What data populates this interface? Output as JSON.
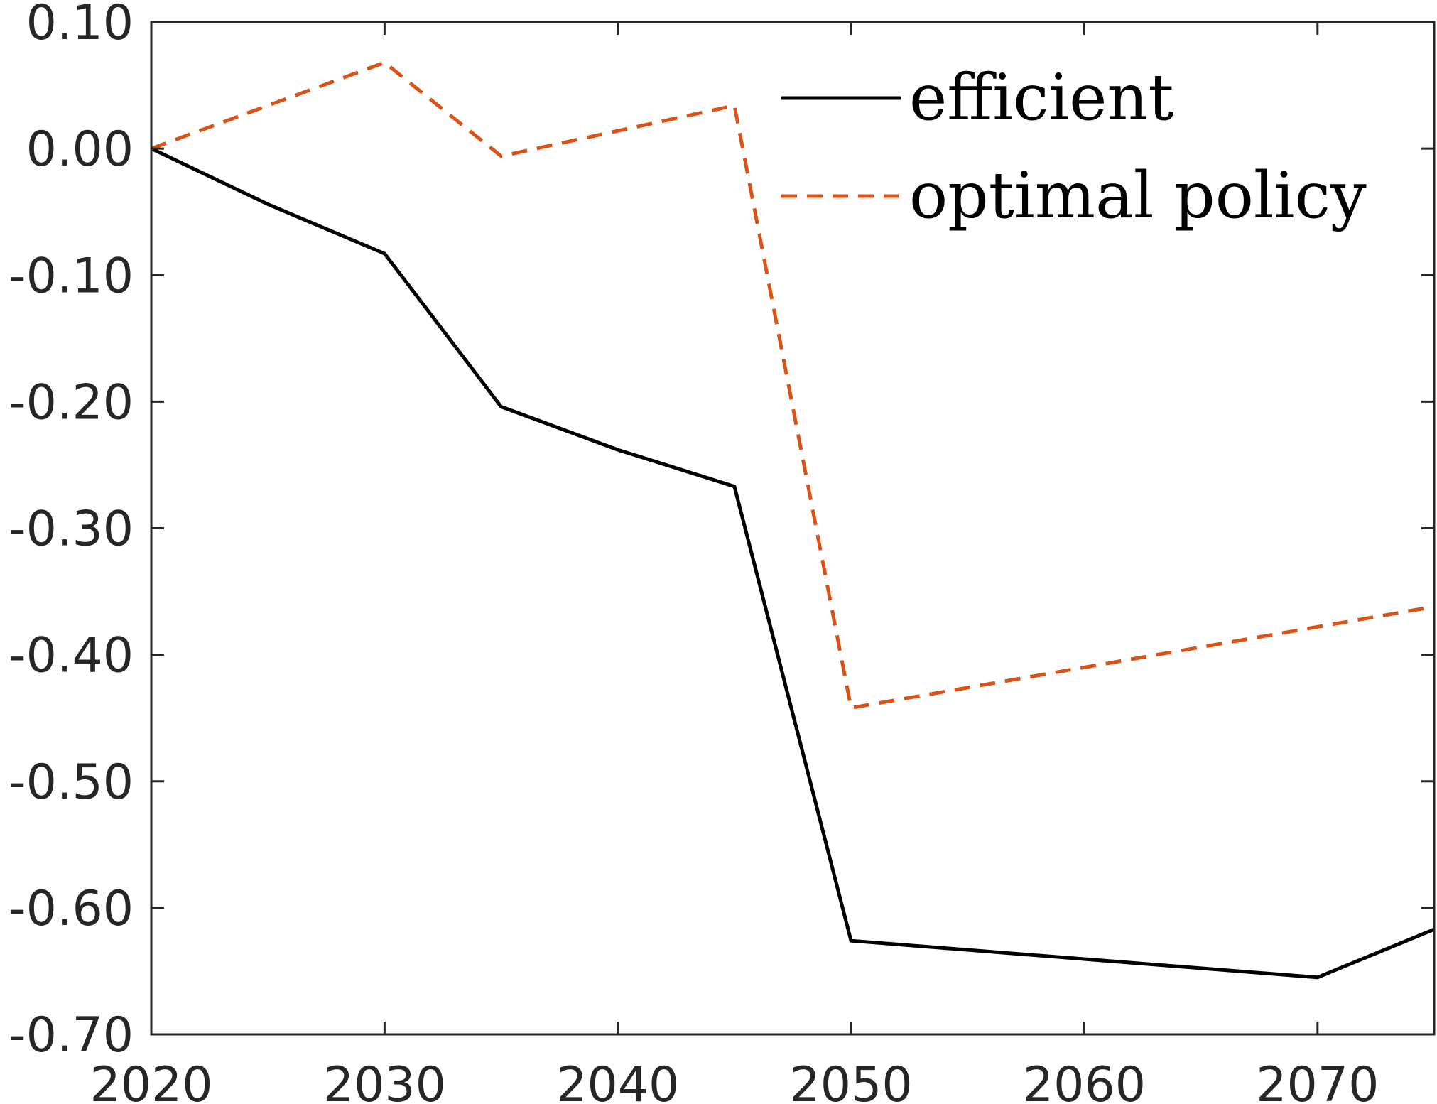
{
  "chart_data": {
    "type": "line",
    "title": "",
    "xlabel": "",
    "ylabel": "",
    "xlim": [
      2020,
      2075
    ],
    "ylim": [
      -0.7,
      0.1
    ],
    "x_ticks": [
      2020,
      2030,
      2040,
      2050,
      2060,
      2070
    ],
    "x_tick_labels": [
      "2020",
      "2030",
      "2040",
      "2050",
      "2060",
      "2070"
    ],
    "y_ticks": [
      0.1,
      0.0,
      -0.1,
      -0.2,
      -0.3,
      -0.4,
      -0.5,
      -0.6,
      -0.7
    ],
    "y_tick_labels": [
      "0.10",
      "0.00",
      "-0.10",
      "-0.20",
      "-0.30",
      "-0.40",
      "-0.50",
      "-0.60",
      "-0.70"
    ],
    "grid": false,
    "legend_position": "top-right",
    "series": [
      {
        "name": "efficient",
        "color": "#000000",
        "style": "solid",
        "x": [
          2020,
          2025,
          2030,
          2035,
          2040,
          2045,
          2050,
          2070,
          2075
        ],
        "y": [
          0.0,
          -0.044,
          -0.083,
          -0.204,
          -0.238,
          -0.267,
          -0.626,
          -0.655,
          -0.617
        ]
      },
      {
        "name": "optimal policy",
        "color": "#D95319",
        "style": "dashed",
        "x": [
          2020,
          2030,
          2035,
          2045,
          2050,
          2075
        ],
        "y": [
          0.0,
          0.068,
          -0.006,
          0.034,
          -0.442,
          -0.362
        ]
      }
    ]
  }
}
